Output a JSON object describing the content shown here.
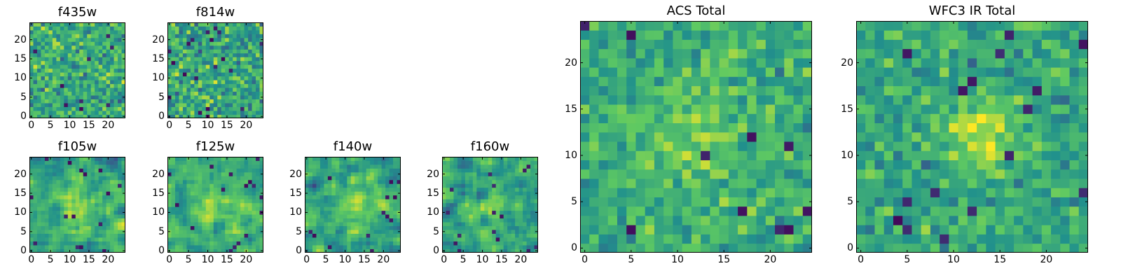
{
  "figure": {
    "background": "#ffffff"
  },
  "colormap": {
    "name": "viridis",
    "stops": [
      "#440154",
      "#3b528b",
      "#21918c",
      "#5ec962",
      "#fde725"
    ]
  },
  "chart_data": [
    {
      "id": "f435w",
      "type": "heatmap",
      "title": "f435w",
      "grid_size": [
        25,
        25
      ],
      "seed": 11,
      "smoothing": 0,
      "xlim": [
        0,
        24
      ],
      "ylim": [
        0,
        24
      ],
      "xticks": [
        0,
        5,
        10,
        15,
        20
      ],
      "yticks": [
        0,
        5,
        10,
        15,
        20
      ],
      "value_range": [
        0,
        1
      ],
      "mean": 0.62,
      "spread": 0.18,
      "peak": null
    },
    {
      "id": "f814w",
      "type": "heatmap",
      "title": "f814w",
      "grid_size": [
        25,
        25
      ],
      "seed": 23,
      "smoothing": 0,
      "xlim": [
        0,
        24
      ],
      "ylim": [
        0,
        24
      ],
      "xticks": [
        0,
        5,
        10,
        15,
        20
      ],
      "yticks": [
        0,
        5,
        10,
        15,
        20
      ],
      "value_range": [
        0,
        1
      ],
      "mean": 0.6,
      "spread": 0.2,
      "peak": null
    },
    {
      "id": "f105w",
      "type": "heatmap",
      "title": "f105w",
      "grid_size": [
        25,
        25
      ],
      "seed": 37,
      "smoothing": 1,
      "xlim": [
        0,
        24
      ],
      "ylim": [
        0,
        24
      ],
      "xticks": [
        0,
        5,
        10,
        15,
        20
      ],
      "yticks": [
        0,
        5,
        10,
        15,
        20
      ],
      "value_range": [
        0,
        1
      ],
      "mean": 0.6,
      "spread": 0.2,
      "peak": {
        "x": 12,
        "y": 12,
        "sigma": 3.5,
        "amplitude": 0.25
      }
    },
    {
      "id": "f125w",
      "type": "heatmap",
      "title": "f125w",
      "grid_size": [
        25,
        25
      ],
      "seed": 41,
      "smoothing": 1,
      "xlim": [
        0,
        24
      ],
      "ylim": [
        0,
        24
      ],
      "xticks": [
        0,
        5,
        10,
        15,
        20
      ],
      "yticks": [
        0,
        5,
        10,
        15,
        20
      ],
      "value_range": [
        0,
        1
      ],
      "mean": 0.62,
      "spread": 0.2,
      "peak": {
        "x": 12,
        "y": 12,
        "sigma": 3.5,
        "amplitude": 0.2
      }
    },
    {
      "id": "f140w",
      "type": "heatmap",
      "title": "f140w",
      "grid_size": [
        25,
        25
      ],
      "seed": 53,
      "smoothing": 1,
      "xlim": [
        0,
        24
      ],
      "ylim": [
        0,
        24
      ],
      "xticks": [
        0,
        5,
        10,
        15,
        20
      ],
      "yticks": [
        0,
        5,
        10,
        15,
        20
      ],
      "value_range": [
        0,
        1
      ],
      "mean": 0.6,
      "spread": 0.2,
      "peak": {
        "x": 13,
        "y": 11,
        "sigma": 3,
        "amplitude": 0.25
      }
    },
    {
      "id": "f160w",
      "type": "heatmap",
      "title": "f160w",
      "grid_size": [
        25,
        25
      ],
      "seed": 67,
      "smoothing": 1,
      "xlim": [
        0,
        24
      ],
      "ylim": [
        0,
        24
      ],
      "xticks": [
        0,
        5,
        10,
        15,
        20
      ],
      "yticks": [
        0,
        5,
        10,
        15,
        20
      ],
      "value_range": [
        0,
        1
      ],
      "mean": 0.58,
      "spread": 0.22,
      "peak": {
        "x": 11,
        "y": 10,
        "sigma": 3,
        "amplitude": 0.2
      }
    },
    {
      "id": "acs_total",
      "type": "heatmap",
      "title": "ACS Total",
      "grid_size": [
        25,
        25
      ],
      "seed": 79,
      "smoothing": 0,
      "xlim": [
        0,
        24
      ],
      "ylim": [
        0,
        24
      ],
      "xticks": [
        0,
        5,
        10,
        15,
        20
      ],
      "yticks": [
        0,
        5,
        10,
        15,
        20
      ],
      "value_range": [
        0,
        1
      ],
      "mean": 0.62,
      "spread": 0.14,
      "peak": {
        "x": 12,
        "y": 12,
        "sigma": 4,
        "amplitude": 0.15
      }
    },
    {
      "id": "wfc3_ir_total",
      "type": "heatmap",
      "title": "WFC3 IR Total",
      "grid_size": [
        25,
        25
      ],
      "seed": 97,
      "smoothing": 0,
      "xlim": [
        0,
        24
      ],
      "ylim": [
        0,
        24
      ],
      "xticks": [
        0,
        5,
        10,
        15,
        20
      ],
      "yticks": [
        0,
        5,
        10,
        15,
        20
      ],
      "value_range": [
        0,
        1
      ],
      "mean": 0.6,
      "spread": 0.14,
      "peak": {
        "x": 13,
        "y": 12,
        "sigma": 2.5,
        "amplitude": 0.35
      }
    }
  ]
}
